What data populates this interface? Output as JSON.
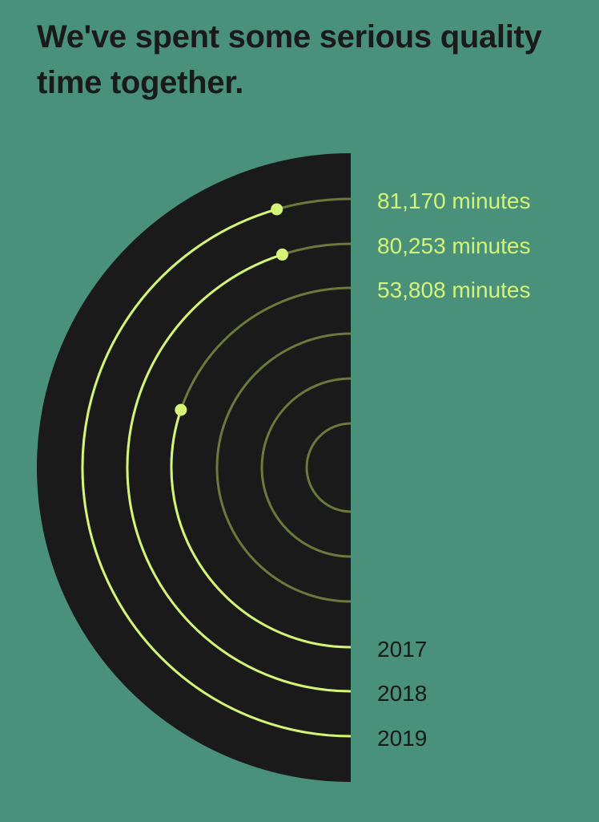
{
  "colors": {
    "background": "#4a917b",
    "disc": "#1a1a1a",
    "accent": "#d4f478",
    "track": "#6b7a3c",
    "text_dark": "#1a1a1a"
  },
  "chart_data": {
    "type": "radial-bar",
    "title": "We've spent some serious quality time together.",
    "series": [
      {
        "year": "2019",
        "value": 81170,
        "label": "81,170 minutes"
      },
      {
        "year": "2018",
        "value": 80253,
        "label": "80,253 minutes"
      },
      {
        "year": "2017",
        "value": 53808,
        "label": "53,808 minutes"
      }
    ],
    "empty_tracks": 3
  }
}
